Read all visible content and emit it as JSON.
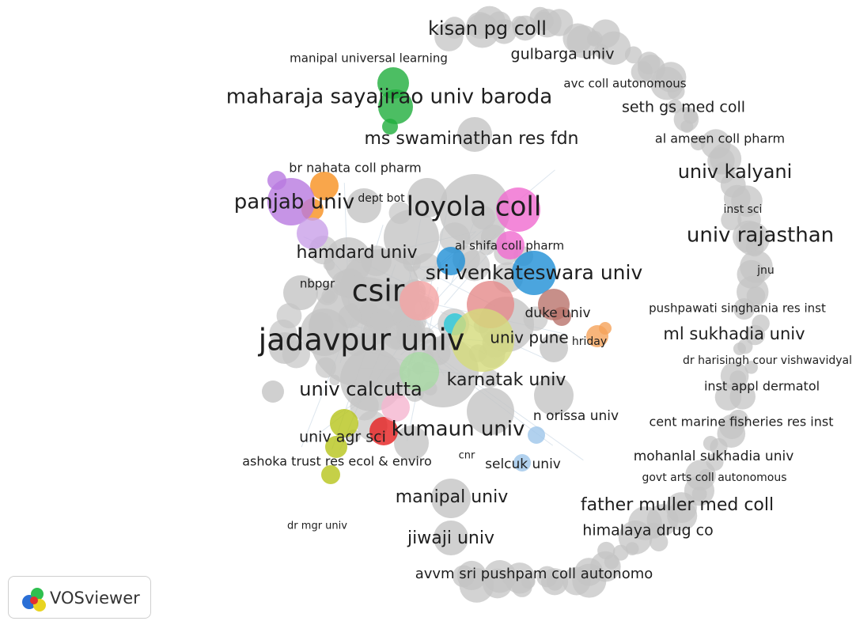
{
  "labels": [
    "kisan pg coll",
    "manipal universal learning",
    "gulbarga univ",
    "avc coll autonomous",
    "maharaja sayajirao univ baroda",
    "seth gs med coll",
    "ms swaminathan res fdn",
    "al ameen coll pharm",
    "br nahata coll pharm",
    "univ kalyani",
    "dept bot",
    "panjab univ",
    "loyola coll",
    "inst sci",
    "univ rajasthan",
    "al shifa coll pharm",
    "hamdard univ",
    "jnu",
    "sri venkateswara univ",
    "nbpgr",
    "csir",
    "pushpawati singhania res inst",
    "duke univ",
    "ml sukhadia univ",
    "jadavpur univ",
    "univ pune",
    "hriday",
    "dr harisingh cour vishwavidyal",
    "inst appl dermatol",
    "karnatak univ",
    "univ calcutta",
    "n orissa univ",
    "cent marine fisheries res inst",
    "kumaun univ",
    "univ agr sci",
    "mohanlal sukhadia univ",
    "cnr",
    "ashoka trust res ecol & enviro",
    "selcuk univ",
    "govt arts coll autonomous",
    "manipal univ",
    "father muller med coll",
    "dr mgr univ",
    "himalaya drug co",
    "jiwaji univ",
    "avvm sri pushpam coll autonomo"
  ],
  "logo": "VOSviewer"
}
